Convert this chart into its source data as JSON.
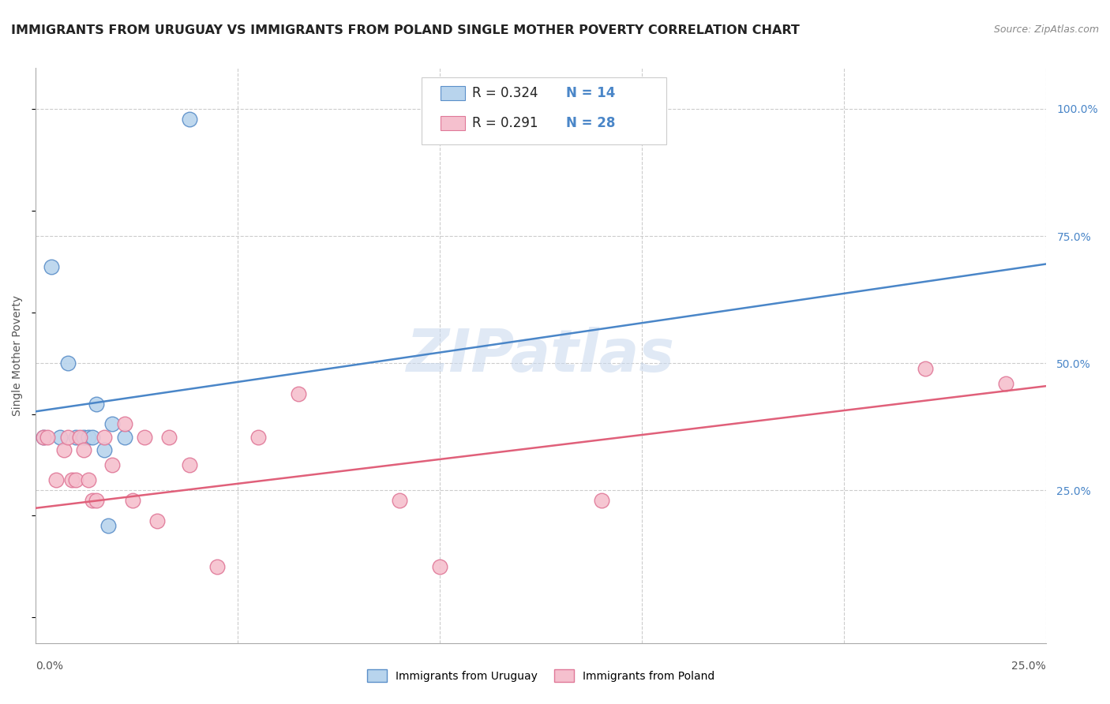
{
  "title": "IMMIGRANTS FROM URUGUAY VS IMMIGRANTS FROM POLAND SINGLE MOTHER POVERTY CORRELATION CHART",
  "source": "Source: ZipAtlas.com",
  "ylabel": "Single Mother Poverty",
  "xlim": [
    0.0,
    0.25
  ],
  "ylim": [
    -0.05,
    1.08
  ],
  "legend_r_uruguay": "0.324",
  "legend_n_uruguay": "14",
  "legend_r_poland": "0.291",
  "legend_n_poland": "28",
  "legend_label_uruguay": "Immigrants from Uruguay",
  "legend_label_poland": "Immigrants from Poland",
  "watermark": "ZIPatlas",
  "uruguay_color": "#b8d4ed",
  "uruguay_edge_color": "#5b8fc9",
  "uruguay_line_color": "#4a86c8",
  "poland_color": "#f5c0ce",
  "poland_edge_color": "#e07898",
  "poland_line_color": "#e0607a",
  "uruguay_points_x": [
    0.002,
    0.004,
    0.006,
    0.008,
    0.01,
    0.012,
    0.013,
    0.014,
    0.015,
    0.017,
    0.018,
    0.019,
    0.022,
    0.038
  ],
  "uruguay_points_y": [
    0.355,
    0.69,
    0.355,
    0.5,
    0.355,
    0.355,
    0.355,
    0.355,
    0.42,
    0.33,
    0.18,
    0.38,
    0.355,
    0.98
  ],
  "poland_points_x": [
    0.002,
    0.003,
    0.005,
    0.007,
    0.008,
    0.009,
    0.01,
    0.011,
    0.012,
    0.013,
    0.014,
    0.015,
    0.017,
    0.019,
    0.022,
    0.024,
    0.027,
    0.03,
    0.033,
    0.038,
    0.045,
    0.055,
    0.065,
    0.09,
    0.1,
    0.14,
    0.22,
    0.24
  ],
  "poland_points_y": [
    0.355,
    0.355,
    0.27,
    0.33,
    0.355,
    0.27,
    0.27,
    0.355,
    0.33,
    0.27,
    0.23,
    0.23,
    0.355,
    0.3,
    0.38,
    0.23,
    0.355,
    0.19,
    0.355,
    0.3,
    0.1,
    0.355,
    0.44,
    0.23,
    0.1,
    0.23,
    0.49,
    0.46
  ],
  "uruguay_line_x": [
    0.0,
    0.25
  ],
  "uruguay_line_y": [
    0.405,
    0.695
  ],
  "poland_line_x": [
    0.0,
    0.25
  ],
  "poland_line_y": [
    0.215,
    0.455
  ],
  "background_color": "#ffffff",
  "grid_color": "#cccccc",
  "marker_size": 180,
  "title_fontsize": 11.5,
  "source_fontsize": 9,
  "axis_label_fontsize": 10,
  "tick_fontsize": 10
}
